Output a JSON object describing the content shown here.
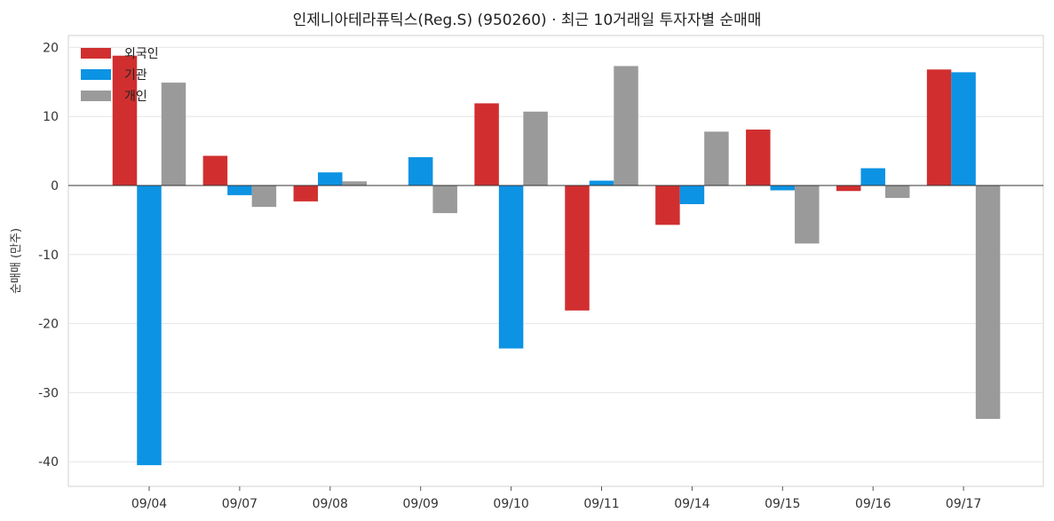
{
  "chart_data": {
    "type": "bar",
    "title": "인제니아테라퓨틱스(Reg.S) (950260) · 최근 10거래일 투자자별 순매매",
    "xlabel": "",
    "ylabel": "순매매 (만주)",
    "categories": [
      "09/04",
      "09/07",
      "09/08",
      "09/09",
      "09/10",
      "09/11",
      "09/14",
      "09/15",
      "09/16",
      "09/17"
    ],
    "series": [
      {
        "name": "외국인",
        "color": "#d12f2f",
        "values": [
          18.8,
          4.3,
          -2.3,
          0,
          11.9,
          -18.1,
          -5.7,
          8.1,
          -0.8,
          16.8
        ]
      },
      {
        "name": "기관",
        "color": "#0c93e3",
        "values": [
          -40.5,
          -1.4,
          1.9,
          4.1,
          -23.6,
          0.7,
          -2.7,
          -0.7,
          2.5,
          16.4
        ]
      },
      {
        "name": "개인",
        "color": "#9a9a9a",
        "values": [
          14.9,
          -3.1,
          0.6,
          -4.0,
          10.7,
          17.3,
          7.8,
          -8.4,
          -1.8,
          -33.8
        ]
      }
    ],
    "yticks": [
      20,
      10,
      0,
      -10,
      -20,
      -30,
      -40
    ],
    "ylim": [
      -43.5,
      22
    ],
    "grid": true,
    "legend": "top-left"
  }
}
